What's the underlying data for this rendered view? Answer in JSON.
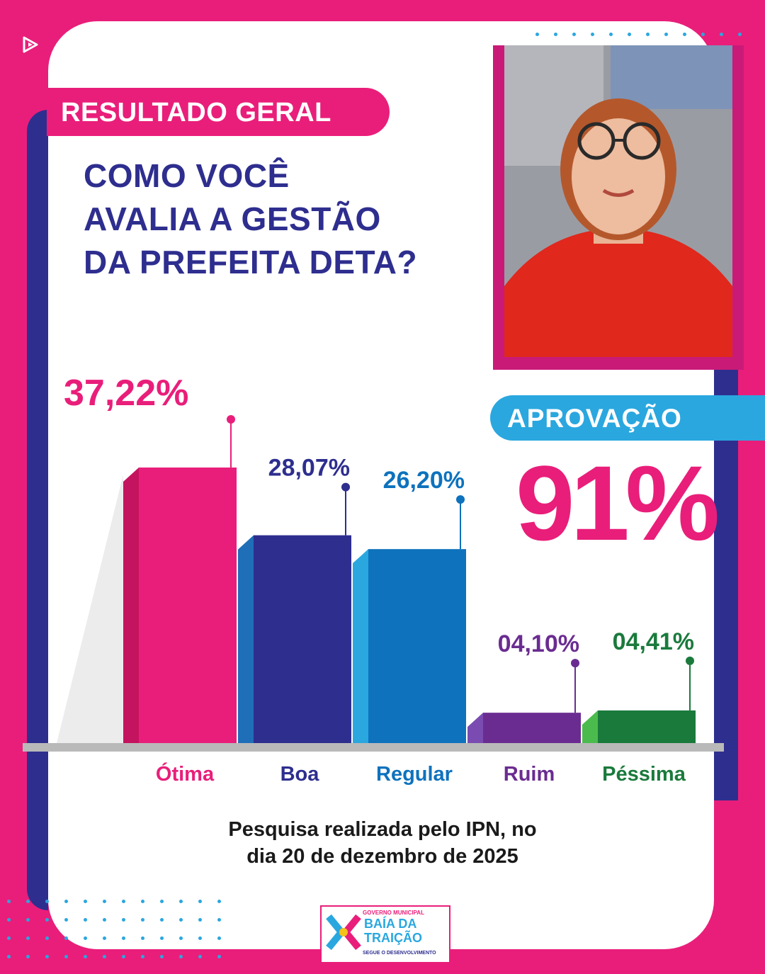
{
  "header": {
    "tag": "RESULTADO GERAL"
  },
  "question": {
    "line1": "COMO VOCÊ",
    "line2": "AVALIA A GESTÃO",
    "line3": "DA PREFEITA DETA?"
  },
  "approval": {
    "label": "APROVAÇÃO",
    "value": "91%"
  },
  "footer": {
    "line1": "Pesquisa realizada pelo IPN, no",
    "line2": "dia 20 de dezembro de 2025"
  },
  "logo": {
    "top": "GOVERNO MUNICIPAL",
    "name1": "BAÍA DA",
    "name2": "TRAIÇÃO",
    "slogan": "SEGUE O DESENVOLVIMENTO"
  },
  "colors": {
    "pink": "#e91e7a",
    "navy": "#2e2e8f",
    "blue": "#0e72bd",
    "purple": "#6a2c91",
    "green": "#1a7a3c"
  },
  "chart_data": {
    "type": "bar",
    "categories": [
      "Ótima",
      "Boa",
      "Regular",
      "Ruim",
      "Péssima"
    ],
    "values": [
      37.22,
      28.07,
      26.2,
      4.1,
      4.41
    ],
    "value_labels": [
      "37,22%",
      "28,07%",
      "26,20%",
      "04,10%",
      "04,41%"
    ],
    "colors": [
      "#e91e7a",
      "#2e2e8f",
      "#0e72bd",
      "#6a2c91",
      "#1a7a3c"
    ],
    "ylim": [
      0,
      40
    ]
  }
}
